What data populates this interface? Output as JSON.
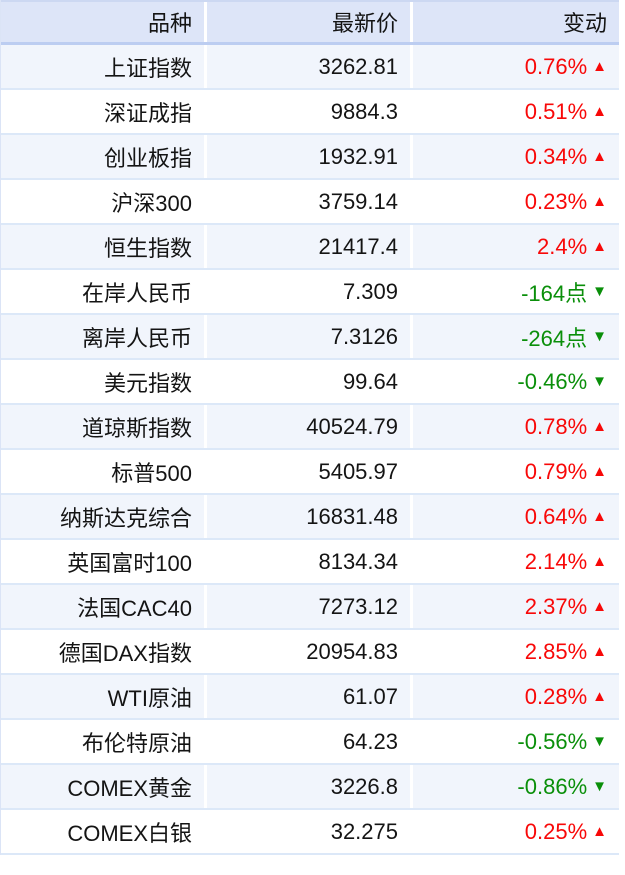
{
  "table": {
    "columns": [
      {
        "label": "品种"
      },
      {
        "label": "最新价"
      },
      {
        "label": "变动"
      }
    ],
    "rows": [
      {
        "name": "上证指数",
        "price": "3262.81",
        "change": "0.76%",
        "direction": "up"
      },
      {
        "name": "深证成指",
        "price": "9884.3",
        "change": "0.51%",
        "direction": "up"
      },
      {
        "name": "创业板指",
        "price": "1932.91",
        "change": "0.34%",
        "direction": "up"
      },
      {
        "name": "沪深300",
        "price": "3759.14",
        "change": "0.23%",
        "direction": "up"
      },
      {
        "name": "恒生指数",
        "price": "21417.4",
        "change": "2.4%",
        "direction": "up"
      },
      {
        "name": "在岸人民币",
        "price": "7.309",
        "change": "-164点",
        "direction": "down"
      },
      {
        "name": "离岸人民币",
        "price": "7.3126",
        "change": "-264点",
        "direction": "down"
      },
      {
        "name": "美元指数",
        "price": "99.64",
        "change": "-0.46%",
        "direction": "down"
      },
      {
        "name": "道琼斯指数",
        "price": "40524.79",
        "change": "0.78%",
        "direction": "up"
      },
      {
        "name": "标普500",
        "price": "5405.97",
        "change": "0.79%",
        "direction": "up"
      },
      {
        "name": "纳斯达克综合",
        "price": "16831.48",
        "change": "0.64%",
        "direction": "up"
      },
      {
        "name": "英国富时100",
        "price": "8134.34",
        "change": "2.14%",
        "direction": "up"
      },
      {
        "name": "法国CAC40",
        "price": "7273.12",
        "change": "2.37%",
        "direction": "up"
      },
      {
        "name": "德国DAX指数",
        "price": "20954.83",
        "change": "2.85%",
        "direction": "up"
      },
      {
        "name": "WTI原油",
        "price": "61.07",
        "change": "0.28%",
        "direction": "up"
      },
      {
        "name": "布伦特原油",
        "price": "64.23",
        "change": "-0.56%",
        "direction": "down"
      },
      {
        "name": "COMEX黄金",
        "price": "3226.8",
        "change": "-0.86%",
        "direction": "down"
      },
      {
        "name": "COMEX白银",
        "price": "32.275",
        "change": "0.25%",
        "direction": "up"
      }
    ]
  },
  "icons": {
    "up": "▲",
    "down": "▼"
  },
  "colors": {
    "up": "#f80808",
    "down": "#0a8f0a",
    "header_bg": "#dde5f8",
    "header_border": "#bccdf1",
    "row_alt_bg": "#f1f5fc",
    "row_border": "#dce8f8"
  }
}
